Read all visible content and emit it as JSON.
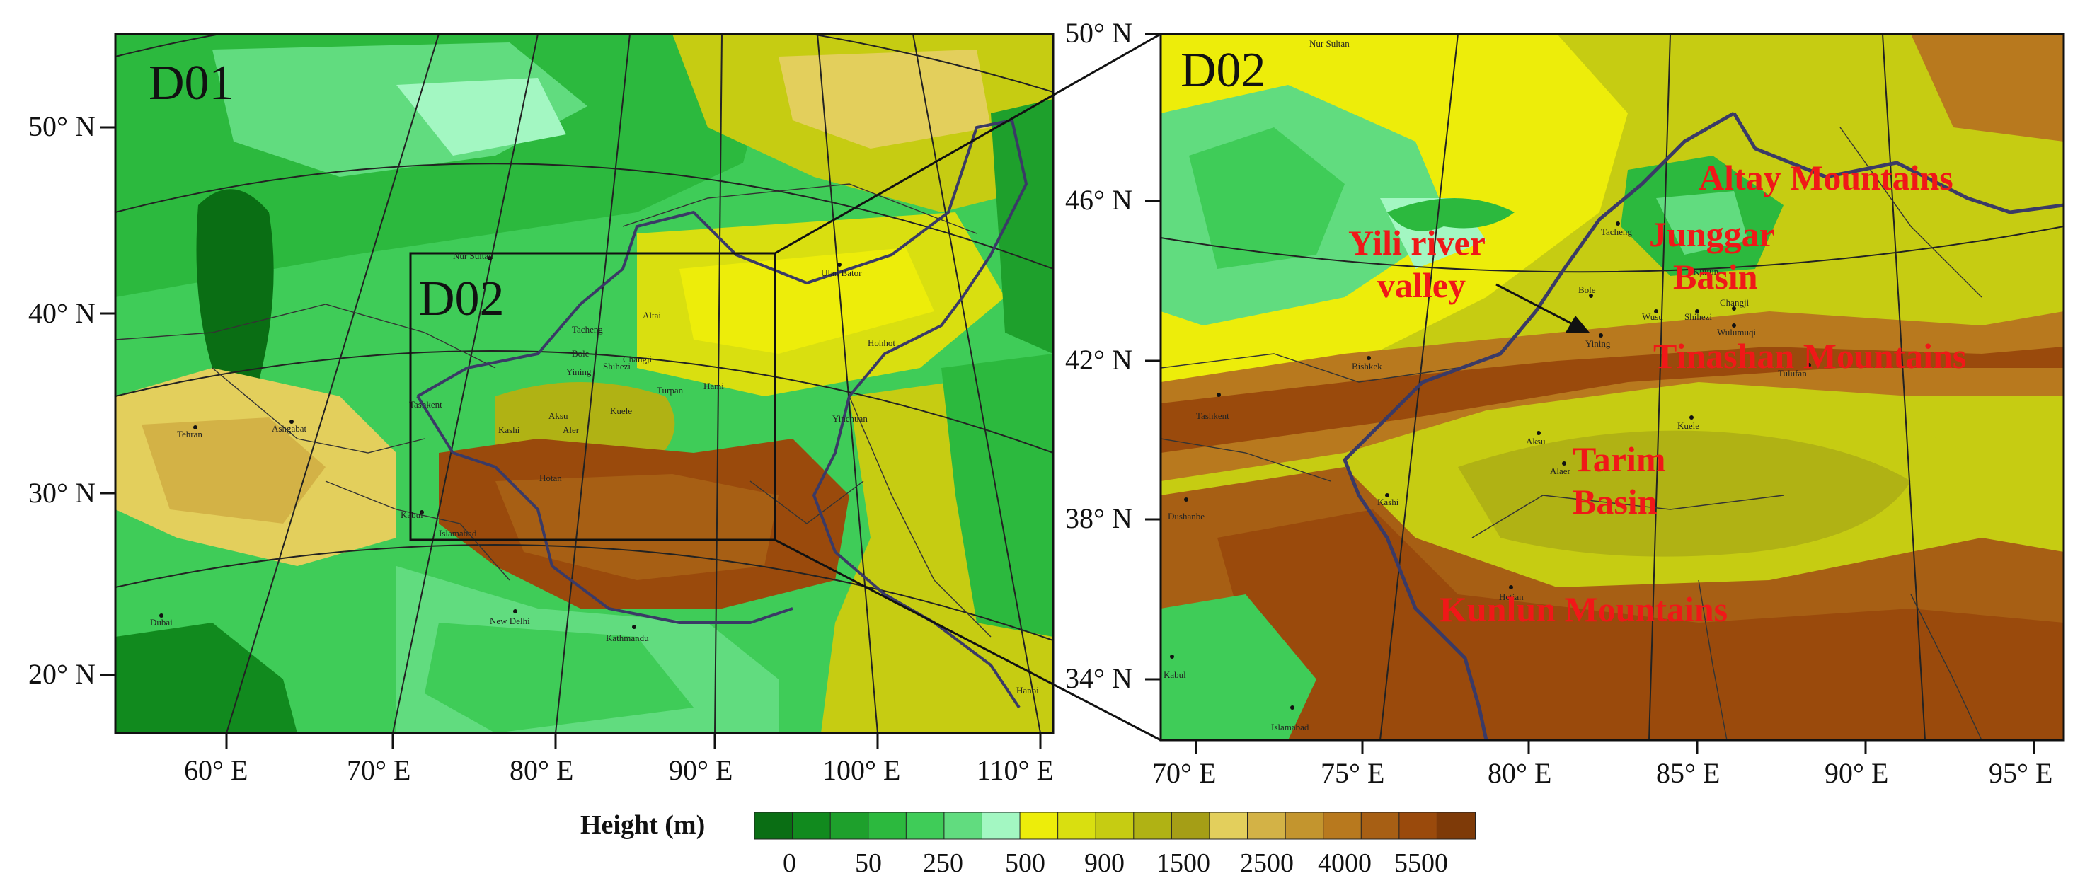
{
  "panel_left": {
    "tag": "D01",
    "inset_tag": "D02",
    "lat_labels": [
      "50° N",
      "40° N",
      "30° N",
      "20° N"
    ],
    "lon_labels": [
      "60° E",
      "70° E",
      "80° E",
      "90° E",
      "100° E",
      "110° E"
    ],
    "cities": [
      "Nur Sultan",
      "Ulan Bator",
      "Tacheng",
      "Altai",
      "Bole",
      "Changji",
      "Yining",
      "Shihezi",
      "Turpan",
      "Hami",
      "Aksu",
      "Aler",
      "Kuele",
      "Hohhot",
      "Yinchuan",
      "Tashkent",
      "Kashi",
      "Hotan",
      "Kabul",
      "Islamabad",
      "Tehran",
      "Ashgabat",
      "Dubai",
      "New Delhi",
      "Kathmandu",
      "Hanoi"
    ]
  },
  "panel_right": {
    "tag": "D02",
    "lat_labels": [
      "50° N",
      "46° N",
      "42° N",
      "38° N",
      "34° N"
    ],
    "lon_labels": [
      "70° E",
      "75° E",
      "80° E",
      "85° E",
      "90° E",
      "95° E"
    ],
    "cities": [
      "Nur Sultan",
      "Tacheng",
      "Bole",
      "Kuitun",
      "Changji",
      "Wusu",
      "Shihezi",
      "Wulumuqi",
      "Yining",
      "Bishkek",
      "Tulufan",
      "Tashkent",
      "Aksu",
      "Alaer",
      "Kuele",
      "Dushanbe",
      "Kashi",
      "Hetian",
      "Kabul",
      "Islamabad"
    ],
    "annotations": {
      "yili": [
        "Yili river",
        "valley"
      ],
      "altay": "Altay Mountains",
      "junggar": [
        "Junggar",
        "Basin"
      ],
      "tianshan": "Tinashan Mountains",
      "tarim": [
        "Tarim",
        "Basin"
      ],
      "kunlun": "Kunlun Mountains"
    }
  },
  "colorbar": {
    "title": "Height (m)",
    "tick_labels": [
      "0",
      "50",
      "250",
      "500",
      "900",
      "1500",
      "2500",
      "4000",
      "5500"
    ],
    "colors": [
      "#0a6e14",
      "#118a1e",
      "#1ea02c",
      "#2cb93e",
      "#3fcc58",
      "#61dc7f",
      "#a3f7c2",
      "#eded0a",
      "#d9df10",
      "#c6cc12",
      "#b0b214",
      "#a59e16",
      "#e3cf5c",
      "#d3b246",
      "#c3952e",
      "#b8791e",
      "#a75f14",
      "#9a4a0c",
      "#7e3a08"
    ]
  }
}
